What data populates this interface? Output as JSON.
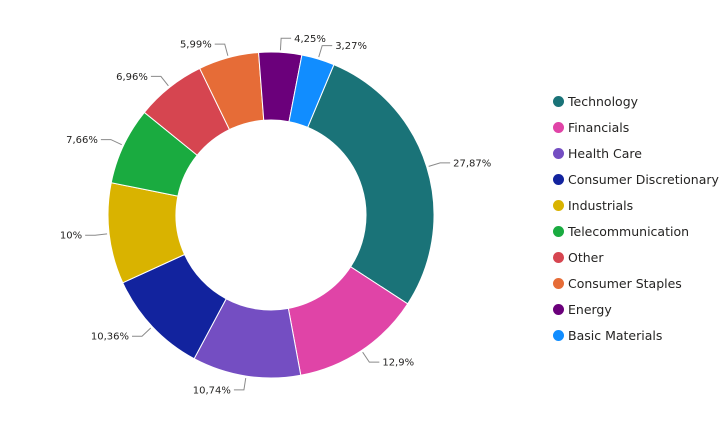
{
  "chart_data": {
    "type": "pie",
    "donut": true,
    "legend_position": "right",
    "series": [
      {
        "name": "Technology",
        "value": 27.87,
        "label": "27,87%",
        "color": "#1A7378"
      },
      {
        "name": "Financials",
        "value": 12.9,
        "label": "12,9%",
        "color": "#E044A7"
      },
      {
        "name": "Health Care",
        "value": 10.74,
        "label": "10,74%",
        "color": "#744EC2"
      },
      {
        "name": "Consumer Discretionary",
        "value": 10.36,
        "label": "10,36%",
        "color": "#12239E"
      },
      {
        "name": "Industrials",
        "value": 10.0,
        "label": "10%",
        "color": "#D9B300"
      },
      {
        "name": "Telecommunication",
        "value": 7.66,
        "label": "7,66%",
        "color": "#1AAB40"
      },
      {
        "name": "Other",
        "value": 6.96,
        "label": "6,96%",
        "color": "#D64550"
      },
      {
        "name": "Consumer Staples",
        "value": 5.99,
        "label": "5,99%",
        "color": "#E66C37"
      },
      {
        "name": "Energy",
        "value": 4.25,
        "label": "4,25%",
        "color": "#6B007B"
      },
      {
        "name": "Basic Materials",
        "value": 3.27,
        "label": "3,27%",
        "color": "#118DFF"
      }
    ]
  }
}
